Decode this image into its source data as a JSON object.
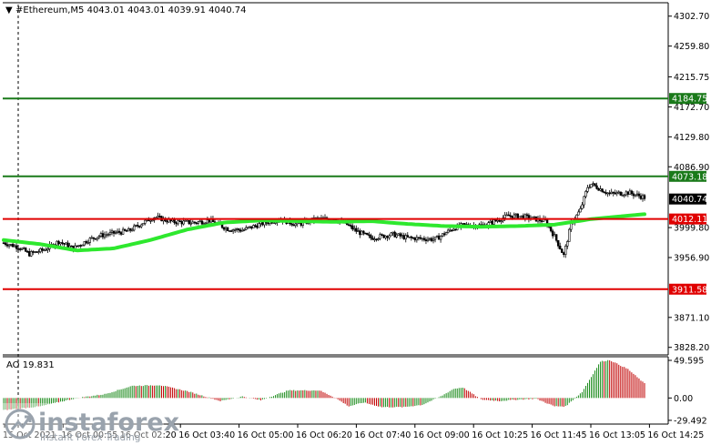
{
  "chart_data": [
    {
      "type": "candlestick",
      "title": "#Ethereum,M5  4043.01 4043.01 4039.91 4040.74",
      "symbol": "#Ethereum",
      "timeframe": "M5",
      "ohlc_header": {
        "open": 4043.01,
        "high": 4043.01,
        "low": 4039.91,
        "close": 4040.74
      },
      "ylim": [
        3820,
        4318
      ],
      "y_ticks": [
        "4302.70",
        "4259.80",
        "4215.75",
        "4172.70",
        "4129.80",
        "4086.90",
        "3999.80",
        "3956.90",
        "3871.10",
        "3828.20"
      ],
      "x_ticks": [
        "15 Oct 2021",
        "16 Oct 00:55",
        "16 Oct 02:20",
        "16 Oct 03:40",
        "16 Oct 05:00",
        "16 Oct 06:20",
        "16 Oct 07:40",
        "16 Oct 09:00",
        "16 Oct 10:25",
        "16 Oct 11:45",
        "16 Oct 13:05",
        "16 Oct 14:25"
      ],
      "price_levels": [
        {
          "value": "4184.75",
          "color": "#1a7a1a"
        },
        {
          "value": "4073.18",
          "color": "#1a7a1a"
        },
        {
          "value": "4012.11",
          "color": "#e00000"
        },
        {
          "value": "3911.58",
          "color": "#e00000"
        }
      ],
      "current_price": "4040.74",
      "close_anchors": [
        [
          0,
          3978
        ],
        [
          8,
          3972
        ],
        [
          14,
          3962
        ],
        [
          22,
          3968
        ],
        [
          30,
          3980
        ],
        [
          38,
          3970
        ],
        [
          46,
          3982
        ],
        [
          52,
          3988
        ],
        [
          60,
          3992
        ],
        [
          68,
          3995
        ],
        [
          78,
          4010
        ],
        [
          82,
          4015
        ],
        [
          92,
          4008
        ],
        [
          104,
          4007
        ],
        [
          112,
          4010
        ],
        [
          122,
          3998
        ],
        [
          130,
          3996
        ],
        [
          140,
          4005
        ],
        [
          150,
          4012
        ],
        [
          160,
          4004
        ],
        [
          170,
          4012
        ],
        [
          180,
          4012
        ],
        [
          187,
          4004
        ],
        [
          192,
          3995
        ],
        [
          200,
          3985
        ],
        [
          212,
          3990
        ],
        [
          220,
          3985
        ],
        [
          235,
          3983
        ],
        [
          245,
          3999
        ],
        [
          250,
          4003
        ],
        [
          262,
          4003
        ],
        [
          275,
          4017
        ],
        [
          284,
          4015
        ],
        [
          295,
          4009
        ],
        [
          300,
          3987
        ],
        [
          305,
          3960
        ],
        [
          309,
          4005
        ],
        [
          314,
          4025
        ],
        [
          318,
          4058
        ],
        [
          320,
          4062
        ],
        [
          330,
          4048
        ],
        [
          340,
          4050
        ],
        [
          349,
          4043
        ]
      ],
      "moving_average": [
        [
          0,
          3982
        ],
        [
          20,
          3976
        ],
        [
          40,
          3967
        ],
        [
          60,
          3970
        ],
        [
          80,
          3982
        ],
        [
          100,
          3997
        ],
        [
          120,
          4007
        ],
        [
          140,
          4010
        ],
        [
          160,
          4009
        ],
        [
          180,
          4008
        ],
        [
          200,
          4009
        ],
        [
          220,
          4005
        ],
        [
          240,
          4002
        ],
        [
          260,
          4001
        ],
        [
          280,
          4002
        ],
        [
          300,
          4004
        ],
        [
          320,
          4012
        ],
        [
          349,
          4019
        ]
      ],
      "moving_average_color": "#2ee82e"
    },
    {
      "type": "bar",
      "title": "AO 19.831",
      "indicator": "AO",
      "current_value": 19.831,
      "ylim": [
        -32,
        52
      ],
      "y_ticks": [
        "49.595",
        "0.00",
        "-29.492"
      ],
      "anchors": [
        [
          0,
          -16
        ],
        [
          20,
          -11
        ],
        [
          40,
          0
        ],
        [
          55,
          5
        ],
        [
          70,
          16
        ],
        [
          85,
          17
        ],
        [
          100,
          9
        ],
        [
          118,
          -4
        ],
        [
          130,
          2
        ],
        [
          140,
          -3
        ],
        [
          155,
          10
        ],
        [
          172,
          10
        ],
        [
          180,
          1
        ],
        [
          188,
          -11
        ],
        [
          196,
          -6
        ],
        [
          206,
          -12
        ],
        [
          218,
          -12
        ],
        [
          228,
          -9
        ],
        [
          238,
          2
        ],
        [
          245,
          12
        ],
        [
          250,
          14
        ],
        [
          260,
          -2
        ],
        [
          270,
          -4
        ],
        [
          280,
          -2
        ],
        [
          290,
          -1
        ],
        [
          300,
          -11
        ],
        [
          306,
          -11
        ],
        [
          315,
          8
        ],
        [
          325,
          48
        ],
        [
          330,
          50
        ],
        [
          340,
          38
        ],
        [
          349,
          19
        ]
      ],
      "positive_color": "#1a8a1a",
      "negative_color": "#c00000"
    }
  ],
  "watermark": {
    "brand": "instaforex",
    "tagline": "Instant Forex Trading"
  }
}
